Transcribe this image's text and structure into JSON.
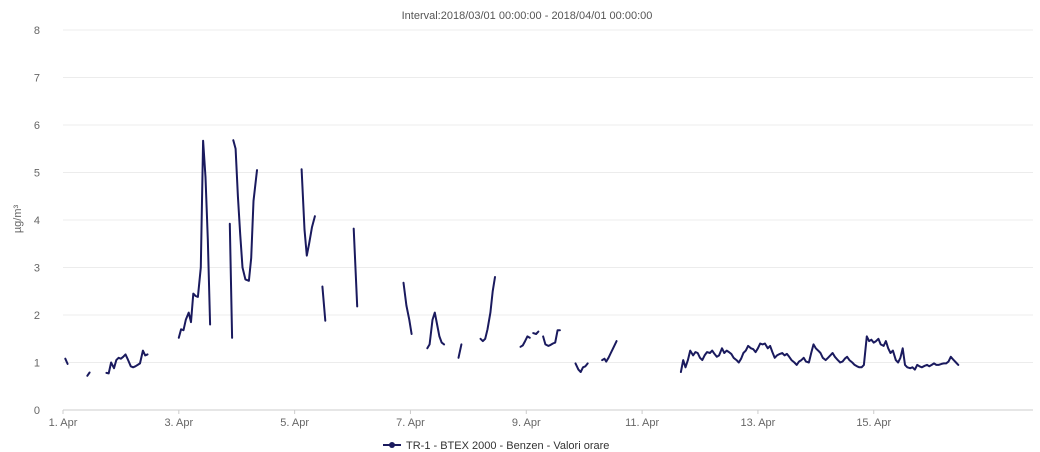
{
  "chart_data": {
    "type": "line",
    "title": "Interval:2018/03/01 00:00:00 - 2018/04/01 00:00:00",
    "ylabel": "µg/m³",
    "xlabel": "",
    "ylim": [
      0,
      8
    ],
    "xlim": [
      1,
      17.75
    ],
    "y_ticks": [
      0,
      1,
      2,
      3,
      4,
      5,
      6,
      7,
      8
    ],
    "x_ticks": [
      {
        "value": 1,
        "label": "1. Apr"
      },
      {
        "value": 3,
        "label": "3. Apr"
      },
      {
        "value": 5,
        "label": "5. Apr"
      },
      {
        "value": 7,
        "label": "7. Apr"
      },
      {
        "value": 9,
        "label": "9. Apr"
      },
      {
        "value": 11,
        "label": "11. Apr"
      },
      {
        "value": 13,
        "label": "13. Apr"
      },
      {
        "value": 15,
        "label": "15. Apr"
      }
    ],
    "grid": true,
    "legend_position": "bottom",
    "color": "#1a1a5e",
    "series": [
      {
        "name": "TR-1 - BTEX 2000 - Benzen - Valori orare",
        "segments": [
          [
            [
              1.04,
              1.08
            ],
            [
              1.08,
              0.97
            ]
          ],
          [
            [
              1.42,
              0.72
            ],
            [
              1.46,
              0.79
            ]
          ],
          [
            [
              1.75,
              0.78
            ],
            [
              1.79,
              0.77
            ],
            [
              1.83,
              1.0
            ],
            [
              1.88,
              0.88
            ],
            [
              1.92,
              1.05
            ],
            [
              1.96,
              1.1
            ],
            [
              2.0,
              1.08
            ],
            [
              2.04,
              1.12
            ],
            [
              2.08,
              1.17
            ],
            [
              2.12,
              1.06
            ],
            [
              2.17,
              0.92
            ],
            [
              2.21,
              0.9
            ],
            [
              2.25,
              0.92
            ],
            [
              2.29,
              0.95
            ],
            [
              2.33,
              0.98
            ],
            [
              2.38,
              1.25
            ],
            [
              2.42,
              1.15
            ],
            [
              2.46,
              1.17
            ]
          ],
          [
            [
              3.0,
              1.52
            ],
            [
              3.04,
              1.7
            ],
            [
              3.08,
              1.68
            ],
            [
              3.12,
              1.9
            ],
            [
              3.17,
              2.05
            ],
            [
              3.21,
              1.85
            ],
            [
              3.25,
              2.45
            ],
            [
              3.29,
              2.4
            ],
            [
              3.33,
              2.38
            ],
            [
              3.38,
              3.0
            ],
            [
              3.42,
              5.67
            ],
            [
              3.46,
              4.9
            ],
            [
              3.5,
              3.6
            ],
            [
              3.54,
              1.8
            ]
          ],
          [
            [
              3.88,
              3.92
            ],
            [
              3.92,
              1.52
            ]
          ],
          [
            [
              3.94,
              5.68
            ],
            [
              3.98,
              5.5
            ],
            [
              4.02,
              4.5
            ],
            [
              4.06,
              3.7
            ],
            [
              4.1,
              3.0
            ],
            [
              4.15,
              2.75
            ],
            [
              4.21,
              2.72
            ],
            [
              4.25,
              3.2
            ],
            [
              4.29,
              4.4
            ],
            [
              4.35,
              5.05
            ]
          ],
          [
            [
              5.12,
              5.07
            ],
            [
              5.17,
              3.8
            ],
            [
              5.21,
              3.25
            ],
            [
              5.25,
              3.5
            ],
            [
              5.3,
              3.85
            ],
            [
              5.35,
              4.08
            ]
          ],
          [
            [
              5.48,
              2.6
            ],
            [
              5.53,
              1.88
            ]
          ],
          [
            [
              6.02,
              3.82
            ],
            [
              6.08,
              2.18
            ]
          ],
          [
            [
              6.88,
              2.68
            ],
            [
              6.93,
              2.2
            ],
            [
              6.98,
              1.9
            ],
            [
              7.02,
              1.6
            ]
          ],
          [
            [
              7.29,
              1.3
            ],
            [
              7.33,
              1.38
            ],
            [
              7.38,
              1.9
            ],
            [
              7.42,
              2.05
            ],
            [
              7.46,
              1.8
            ],
            [
              7.5,
              1.55
            ],
            [
              7.54,
              1.42
            ],
            [
              7.58,
              1.38
            ]
          ],
          [
            [
              7.83,
              1.1
            ],
            [
              7.88,
              1.38
            ]
          ],
          [
            [
              8.21,
              1.5
            ],
            [
              8.25,
              1.45
            ],
            [
              8.29,
              1.5
            ],
            [
              8.33,
              1.7
            ],
            [
              8.38,
              2.05
            ],
            [
              8.42,
              2.5
            ],
            [
              8.46,
              2.8
            ]
          ],
          [
            [
              8.9,
              1.33
            ],
            [
              8.94,
              1.36
            ],
            [
              8.98,
              1.45
            ],
            [
              9.02,
              1.55
            ],
            [
              9.06,
              1.52
            ]
          ],
          [
            [
              9.12,
              1.62
            ],
            [
              9.17,
              1.6
            ],
            [
              9.21,
              1.65
            ]
          ],
          [
            [
              9.29,
              1.55
            ],
            [
              9.33,
              1.38
            ],
            [
              9.38,
              1.35
            ],
            [
              9.42,
              1.37
            ],
            [
              9.46,
              1.4
            ],
            [
              9.5,
              1.42
            ],
            [
              9.54,
              1.68
            ],
            [
              9.58,
              1.68
            ]
          ],
          [
            [
              9.85,
              0.98
            ],
            [
              9.9,
              0.85
            ],
            [
              9.94,
              0.8
            ],
            [
              9.98,
              0.9
            ],
            [
              10.02,
              0.92
            ],
            [
              10.06,
              0.98
            ]
          ],
          [
            [
              10.31,
              1.05
            ],
            [
              10.35,
              1.08
            ],
            [
              10.38,
              1.02
            ],
            [
              10.42,
              1.1
            ],
            [
              10.46,
              1.2
            ],
            [
              10.5,
              1.3
            ],
            [
              10.56,
              1.45
            ]
          ],
          [
            [
              11.67,
              0.8
            ],
            [
              11.71,
              1.05
            ],
            [
              11.75,
              0.9
            ],
            [
              11.79,
              1.05
            ],
            [
              11.83,
              1.25
            ],
            [
              11.88,
              1.15
            ],
            [
              11.92,
              1.22
            ],
            [
              11.96,
              1.2
            ],
            [
              12.0,
              1.1
            ],
            [
              12.04,
              1.05
            ],
            [
              12.08,
              1.15
            ],
            [
              12.12,
              1.22
            ],
            [
              12.17,
              1.2
            ],
            [
              12.21,
              1.25
            ],
            [
              12.25,
              1.18
            ],
            [
              12.29,
              1.12
            ],
            [
              12.33,
              1.15
            ],
            [
              12.38,
              1.3
            ],
            [
              12.42,
              1.2
            ],
            [
              12.46,
              1.25
            ],
            [
              12.5,
              1.22
            ],
            [
              12.54,
              1.18
            ],
            [
              12.58,
              1.1
            ],
            [
              12.63,
              1.05
            ],
            [
              12.67,
              1.0
            ],
            [
              12.71,
              1.08
            ],
            [
              12.75,
              1.2
            ],
            [
              12.79,
              1.25
            ],
            [
              12.83,
              1.35
            ],
            [
              12.88,
              1.3
            ],
            [
              12.92,
              1.28
            ],
            [
              12.96,
              1.22
            ],
            [
              13.0,
              1.3
            ],
            [
              13.04,
              1.4
            ],
            [
              13.08,
              1.38
            ],
            [
              13.12,
              1.4
            ],
            [
              13.17,
              1.3
            ],
            [
              13.21,
              1.35
            ],
            [
              13.25,
              1.22
            ],
            [
              13.29,
              1.1
            ],
            [
              13.33,
              1.15
            ],
            [
              13.38,
              1.18
            ],
            [
              13.42,
              1.2
            ],
            [
              13.46,
              1.15
            ],
            [
              13.5,
              1.18
            ],
            [
              13.54,
              1.12
            ],
            [
              13.58,
              1.05
            ],
            [
              13.63,
              1.0
            ],
            [
              13.67,
              0.95
            ],
            [
              13.71,
              1.02
            ],
            [
              13.75,
              1.05
            ],
            [
              13.79,
              1.1
            ],
            [
              13.83,
              1.02
            ],
            [
              13.88,
              1.0
            ],
            [
              13.92,
              1.2
            ],
            [
              13.96,
              1.38
            ],
            [
              14.0,
              1.3
            ],
            [
              14.04,
              1.25
            ],
            [
              14.08,
              1.2
            ],
            [
              14.12,
              1.1
            ],
            [
              14.17,
              1.05
            ],
            [
              14.21,
              1.1
            ],
            [
              14.25,
              1.15
            ],
            [
              14.29,
              1.2
            ],
            [
              14.33,
              1.12
            ],
            [
              14.38,
              1.05
            ],
            [
              14.42,
              1.0
            ],
            [
              14.46,
              1.02
            ],
            [
              14.5,
              1.08
            ],
            [
              14.54,
              1.12
            ],
            [
              14.58,
              1.05
            ],
            [
              14.63,
              1.0
            ],
            [
              14.67,
              0.95
            ],
            [
              14.71,
              0.92
            ],
            [
              14.75,
              0.9
            ],
            [
              14.79,
              0.9
            ],
            [
              14.83,
              0.95
            ],
            [
              14.88,
              1.55
            ],
            [
              14.92,
              1.45
            ],
            [
              14.96,
              1.48
            ],
            [
              15.0,
              1.42
            ],
            [
              15.04,
              1.45
            ],
            [
              15.08,
              1.5
            ],
            [
              15.12,
              1.38
            ],
            [
              15.17,
              1.35
            ],
            [
              15.21,
              1.45
            ],
            [
              15.25,
              1.3
            ],
            [
              15.29,
              1.2
            ],
            [
              15.33,
              1.25
            ],
            [
              15.38,
              1.05
            ],
            [
              15.42,
              1.0
            ],
            [
              15.46,
              1.1
            ],
            [
              15.5,
              1.3
            ],
            [
              15.54,
              0.95
            ],
            [
              15.58,
              0.9
            ],
            [
              15.63,
              0.88
            ],
            [
              15.67,
              0.9
            ],
            [
              15.71,
              0.85
            ],
            [
              15.75,
              0.95
            ],
            [
              15.79,
              0.92
            ],
            [
              15.83,
              0.9
            ],
            [
              15.88,
              0.93
            ],
            [
              15.92,
              0.95
            ],
            [
              15.96,
              0.92
            ],
            [
              16.0,
              0.95
            ],
            [
              16.04,
              0.98
            ],
            [
              16.08,
              0.95
            ],
            [
              16.12,
              0.95
            ],
            [
              16.17,
              0.97
            ],
            [
              16.21,
              0.98
            ],
            [
              16.25,
              0.98
            ],
            [
              16.29,
              1.02
            ],
            [
              16.33,
              1.12
            ],
            [
              16.38,
              1.05
            ],
            [
              16.42,
              1.0
            ],
            [
              16.46,
              0.95
            ]
          ]
        ]
      }
    ]
  }
}
